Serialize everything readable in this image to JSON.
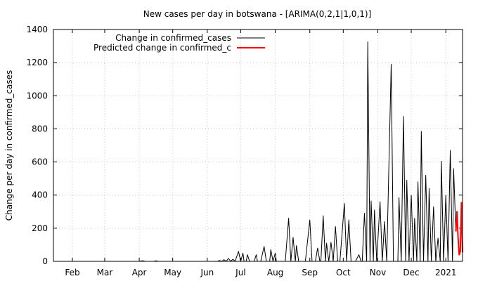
{
  "chart_data": {
    "type": "line",
    "title": "New cases per day in botswana -  [ARIMA(0,2,1|1,0,1)]",
    "xlabel": "",
    "ylabel": "Change per day in confirmed_cases",
    "ylim": [
      0,
      1400
    ],
    "yticks": [
      0,
      200,
      400,
      600,
      800,
      1000,
      1200,
      1400
    ],
    "xlim": [
      "2020-01-15",
      "2021-01-16"
    ],
    "xticks": [
      {
        "label": "Feb",
        "date": "2020-02-01"
      },
      {
        "label": "Mar",
        "date": "2020-03-01"
      },
      {
        "label": "Apr",
        "date": "2020-04-01"
      },
      {
        "label": "May",
        "date": "2020-05-01"
      },
      {
        "label": "Jun",
        "date": "2020-06-01"
      },
      {
        "label": "Jul",
        "date": "2020-07-01"
      },
      {
        "label": "Aug",
        "date": "2020-08-01"
      },
      {
        "label": "Sep",
        "date": "2020-09-01"
      },
      {
        "label": "Oct",
        "date": "2020-10-01"
      },
      {
        "label": "Nov",
        "date": "2020-11-01"
      },
      {
        "label": "Dec",
        "date": "2020-12-01"
      },
      {
        "label": "2021",
        "date": "2021-01-01"
      }
    ],
    "grid": true,
    "legend_position": "top-left",
    "series": [
      {
        "name": "Change in confirmed_cases",
        "color": "#000000",
        "points": [
          [
            "2020-01-15",
            0
          ],
          [
            "2020-04-01",
            0
          ],
          [
            "2020-04-04",
            4
          ],
          [
            "2020-04-06",
            0
          ],
          [
            "2020-04-14",
            0
          ],
          [
            "2020-04-16",
            3
          ],
          [
            "2020-04-18",
            0
          ],
          [
            "2020-06-01",
            0
          ],
          [
            "2020-06-10",
            0
          ],
          [
            "2020-06-12",
            5
          ],
          [
            "2020-06-14",
            0
          ],
          [
            "2020-06-16",
            10
          ],
          [
            "2020-06-18",
            0
          ],
          [
            "2020-06-20",
            18
          ],
          [
            "2020-06-22",
            0
          ],
          [
            "2020-06-24",
            12
          ],
          [
            "2020-06-26",
            0
          ],
          [
            "2020-06-29",
            60
          ],
          [
            "2020-07-01",
            0
          ],
          [
            "2020-07-03",
            50
          ],
          [
            "2020-07-04",
            0
          ],
          [
            "2020-07-06",
            0
          ],
          [
            "2020-07-07",
            40
          ],
          [
            "2020-07-09",
            0
          ],
          [
            "2020-07-13",
            0
          ],
          [
            "2020-07-15",
            40
          ],
          [
            "2020-07-16",
            0
          ],
          [
            "2020-07-19",
            0
          ],
          [
            "2020-07-22",
            90
          ],
          [
            "2020-07-24",
            0
          ],
          [
            "2020-07-27",
            0
          ],
          [
            "2020-07-28",
            70
          ],
          [
            "2020-07-30",
            0
          ],
          [
            "2020-08-01",
            50
          ],
          [
            "2020-08-02",
            0
          ],
          [
            "2020-08-10",
            0
          ],
          [
            "2020-08-13",
            260
          ],
          [
            "2020-08-15",
            0
          ],
          [
            "2020-08-17",
            145
          ],
          [
            "2020-08-19",
            0
          ],
          [
            "2020-08-20",
            95
          ],
          [
            "2020-08-22",
            0
          ],
          [
            "2020-08-28",
            0
          ],
          [
            "2020-09-01",
            250
          ],
          [
            "2020-09-03",
            0
          ],
          [
            "2020-09-06",
            0
          ],
          [
            "2020-09-08",
            80
          ],
          [
            "2020-09-10",
            0
          ],
          [
            "2020-09-11",
            10
          ],
          [
            "2020-09-13",
            275
          ],
          [
            "2020-09-15",
            0
          ],
          [
            "2020-09-16",
            110
          ],
          [
            "2020-09-18",
            0
          ],
          [
            "2020-09-20",
            115
          ],
          [
            "2020-09-22",
            0
          ],
          [
            "2020-09-24",
            210
          ],
          [
            "2020-09-26",
            0
          ],
          [
            "2020-09-28",
            0
          ],
          [
            "2020-10-02",
            350
          ],
          [
            "2020-10-04",
            0
          ],
          [
            "2020-10-06",
            250
          ],
          [
            "2020-10-08",
            0
          ],
          [
            "2020-10-12",
            0
          ],
          [
            "2020-10-15",
            40
          ],
          [
            "2020-10-17",
            0
          ],
          [
            "2020-10-18",
            0
          ],
          [
            "2020-10-20",
            290
          ],
          [
            "2020-10-22",
            0
          ],
          [
            "2020-10-23",
            1325
          ],
          [
            "2020-10-25",
            0
          ],
          [
            "2020-10-26",
            365
          ],
          [
            "2020-10-28",
            0
          ],
          [
            "2020-10-29",
            310
          ],
          [
            "2020-10-31",
            0
          ],
          [
            "2020-11-03",
            360
          ],
          [
            "2020-11-05",
            0
          ],
          [
            "2020-11-07",
            240
          ],
          [
            "2020-11-09",
            0
          ],
          [
            "2020-11-13",
            1190
          ],
          [
            "2020-11-15",
            0
          ],
          [
            "2020-11-19",
            0
          ],
          [
            "2020-11-20",
            385
          ],
          [
            "2020-11-22",
            0
          ],
          [
            "2020-11-24",
            875
          ],
          [
            "2020-11-26",
            0
          ],
          [
            "2020-11-27",
            490
          ],
          [
            "2020-11-29",
            0
          ],
          [
            "2020-12-01",
            400
          ],
          [
            "2020-12-03",
            0
          ],
          [
            "2020-12-04",
            260
          ],
          [
            "2020-12-06",
            0
          ],
          [
            "2020-12-07",
            480
          ],
          [
            "2020-12-09",
            0
          ],
          [
            "2020-12-10",
            785
          ],
          [
            "2020-12-12",
            0
          ],
          [
            "2020-12-14",
            520
          ],
          [
            "2020-12-16",
            0
          ],
          [
            "2020-12-17",
            440
          ],
          [
            "2020-12-19",
            0
          ],
          [
            "2020-12-21",
            330
          ],
          [
            "2020-12-23",
            0
          ],
          [
            "2020-12-25",
            140
          ],
          [
            "2020-12-27",
            0
          ],
          [
            "2020-12-28",
            605
          ],
          [
            "2020-12-30",
            0
          ],
          [
            "2021-01-01",
            400
          ],
          [
            "2021-01-03",
            0
          ],
          [
            "2021-01-05",
            670
          ],
          [
            "2021-01-07",
            0
          ],
          [
            "2021-01-08",
            560
          ],
          [
            "2021-01-10",
            180
          ]
        ]
      },
      {
        "name": "Predicted change in confirmed_c",
        "color": "#ff0000",
        "points": [
          [
            "2021-01-10",
            180
          ],
          [
            "2021-01-11",
            300
          ],
          [
            "2021-01-12",
            140
          ],
          [
            "2021-01-13",
            40
          ],
          [
            "2021-01-14",
            60
          ],
          [
            "2021-01-15",
            355
          ],
          [
            "2021-01-16",
            55
          ]
        ]
      }
    ]
  }
}
